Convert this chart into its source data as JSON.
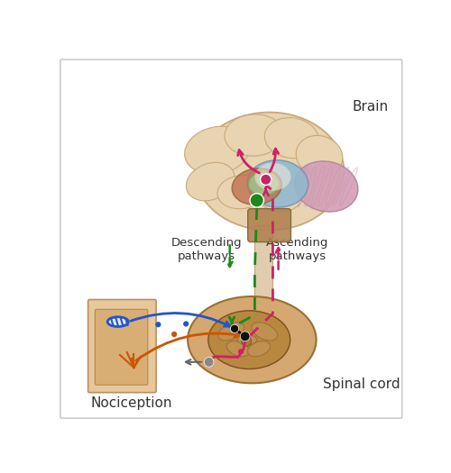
{
  "bg": "#ffffff",
  "border_color": "#cccccc",
  "labels": {
    "brain": "Brain",
    "spinal": "Spinal cord",
    "nociception": "Nociception",
    "descending": "Descending\npathways",
    "ascending": "Ascending\npathways"
  },
  "colors": {
    "brain_skin": "#e8d4b0",
    "brain_fold": "#c8a87a",
    "cerebellum": "#d4a0b5",
    "midbrain_blue": "#90b8d0",
    "brainstem_brown": "#b08050",
    "medulla_green": "#a0c088",
    "red_area": "#c07050",
    "spinal_outer": "#d4a870",
    "spinal_inner": "#b88840",
    "tissue_light": "#e8c89a",
    "tissue_dark": "#d0a060",
    "green_neuron": "#1a8a1a",
    "pink_neuron": "#cc2266",
    "gray_neuron": "#888888",
    "black_neuron": "#111111",
    "blue_nerve": "#2255cc",
    "orange_nerve": "#cc5500",
    "magenta_path": "#cc2266",
    "green_path": "#1a8a1a",
    "label_dark": "#333333",
    "stem_fill": "#d8bc94"
  },
  "label_fontsize": 11,
  "annot_fontsize": 9.5
}
